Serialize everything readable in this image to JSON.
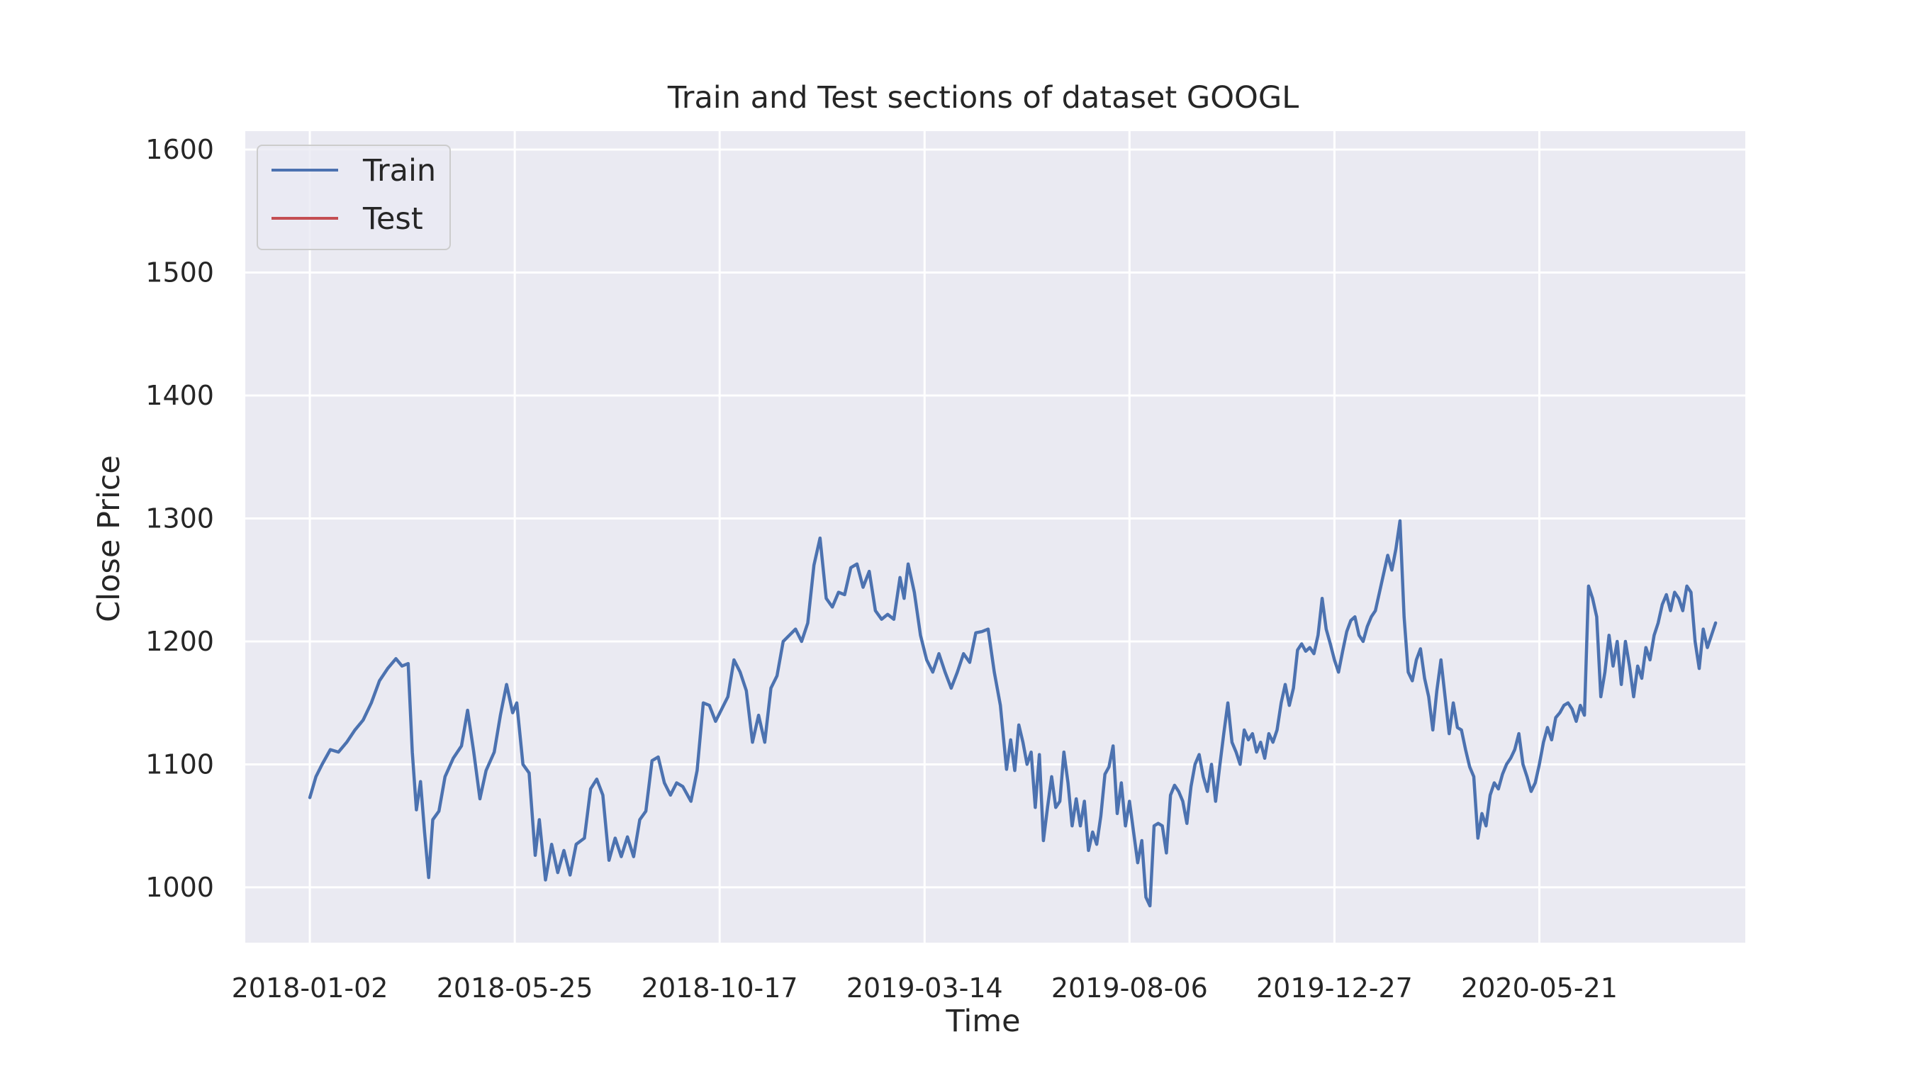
{
  "chart_data": {
    "type": "line",
    "title": "Train and Test sections of dataset GOOGL",
    "xlabel": "Time",
    "ylabel": "Close Price",
    "x_tick_labels": [
      "2018-01-02",
      "2018-05-25",
      "2018-10-17",
      "2019-03-14",
      "2019-08-06",
      "2019-12-27",
      "2020-05-21"
    ],
    "y_ticks": [
      1000,
      1100,
      1200,
      1300,
      1400,
      1500,
      1600
    ],
    "y_tick_labels": [
      "1000",
      "1100",
      "1200",
      "1300",
      "1400",
      "1500",
      "1600"
    ],
    "ylim": [
      955,
      1615
    ],
    "xlim_index": [
      -31.5,
      700.5
    ],
    "grid": true,
    "legend_position": "top-left",
    "series": [
      {
        "name": "Train",
        "color": "#4c72b0",
        "points": [
          [
            0,
            1073
          ],
          [
            3,
            1090
          ],
          [
            6,
            1100
          ],
          [
            10,
            1112
          ],
          [
            14,
            1110
          ],
          [
            18,
            1118
          ],
          [
            22,
            1128
          ],
          [
            26,
            1136
          ],
          [
            30,
            1150
          ],
          [
            34,
            1168
          ],
          [
            38,
            1178
          ],
          [
            42,
            1186
          ],
          [
            45,
            1180
          ],
          [
            48,
            1182
          ],
          [
            50,
            1110
          ],
          [
            52,
            1063
          ],
          [
            54,
            1086
          ],
          [
            56,
            1045
          ],
          [
            58,
            1008
          ],
          [
            60,
            1055
          ],
          [
            63,
            1062
          ],
          [
            66,
            1090
          ],
          [
            70,
            1105
          ],
          [
            74,
            1115
          ],
          [
            77,
            1144
          ],
          [
            80,
            1110
          ],
          [
            83,
            1072
          ],
          [
            86,
            1095
          ],
          [
            90,
            1110
          ],
          [
            93,
            1140
          ],
          [
            96,
            1165
          ],
          [
            99,
            1142
          ],
          [
            101,
            1150
          ],
          [
            104,
            1100
          ],
          [
            107,
            1093
          ],
          [
            110,
            1026
          ],
          [
            112,
            1055
          ],
          [
            115,
            1006
          ],
          [
            118,
            1035
          ],
          [
            121,
            1012
          ],
          [
            124,
            1030
          ],
          [
            127,
            1010
          ],
          [
            130,
            1035
          ],
          [
            134,
            1040
          ],
          [
            137,
            1080
          ],
          [
            140,
            1088
          ],
          [
            143,
            1075
          ],
          [
            146,
            1022
          ],
          [
            149,
            1040
          ],
          [
            152,
            1025
          ],
          [
            155,
            1041
          ],
          [
            158,
            1025
          ],
          [
            161,
            1055
          ],
          [
            164,
            1062
          ],
          [
            167,
            1103
          ],
          [
            170,
            1106
          ],
          [
            173,
            1085
          ],
          [
            176,
            1075
          ],
          [
            179,
            1085
          ],
          [
            182,
            1082
          ],
          [
            186,
            1070
          ],
          [
            189,
            1095
          ],
          [
            192,
            1150
          ],
          [
            195,
            1148
          ],
          [
            198,
            1135
          ],
          [
            201,
            1145
          ],
          [
            204,
            1155
          ],
          [
            207,
            1185
          ],
          [
            210,
            1175
          ],
          [
            213,
            1160
          ],
          [
            216,
            1118
          ],
          [
            219,
            1140
          ],
          [
            222,
            1118
          ],
          [
            225,
            1162
          ],
          [
            228,
            1172
          ],
          [
            231,
            1200
          ],
          [
            234,
            1205
          ],
          [
            237,
            1210
          ],
          [
            240,
            1200
          ],
          [
            243,
            1215
          ],
          [
            246,
            1262
          ],
          [
            249,
            1284
          ],
          [
            252,
            1235
          ],
          [
            255,
            1228
          ],
          [
            258,
            1240
          ],
          [
            261,
            1238
          ],
          [
            264,
            1260
          ],
          [
            267,
            1263
          ],
          [
            270,
            1244
          ],
          [
            273,
            1257
          ],
          [
            276,
            1225
          ],
          [
            279,
            1218
          ],
          [
            282,
            1222
          ],
          [
            285,
            1218
          ],
          [
            288,
            1252
          ],
          [
            290,
            1235
          ],
          [
            292,
            1263
          ],
          [
            295,
            1240
          ],
          [
            298,
            1205
          ],
          [
            301,
            1185
          ],
          [
            304,
            1175
          ],
          [
            307,
            1190
          ],
          [
            310,
            1175
          ],
          [
            313,
            1162
          ],
          [
            316,
            1175
          ],
          [
            319,
            1190
          ],
          [
            322,
            1183
          ],
          [
            325,
            1207
          ],
          [
            328,
            1208
          ],
          [
            331,
            1210
          ],
          [
            334,
            1175
          ],
          [
            337,
            1148
          ],
          [
            340,
            1096
          ],
          [
            342,
            1120
          ],
          [
            344,
            1095
          ],
          [
            346,
            1132
          ],
          [
            348,
            1118
          ],
          [
            350,
            1100
          ],
          [
            352,
            1110
          ],
          [
            354,
            1065
          ],
          [
            356,
            1108
          ],
          [
            358,
            1038
          ],
          [
            360,
            1065
          ],
          [
            362,
            1090
          ],
          [
            364,
            1065
          ],
          [
            366,
            1070
          ],
          [
            368,
            1110
          ],
          [
            370,
            1085
          ],
          [
            372,
            1050
          ],
          [
            374,
            1072
          ],
          [
            376,
            1050
          ],
          [
            378,
            1070
          ],
          [
            380,
            1030
          ],
          [
            382,
            1045
          ],
          [
            384,
            1035
          ],
          [
            386,
            1058
          ],
          [
            388,
            1092
          ],
          [
            390,
            1098
          ],
          [
            392,
            1115
          ],
          [
            394,
            1060
          ],
          [
            396,
            1085
          ],
          [
            398,
            1050
          ],
          [
            400,
            1070
          ],
          [
            402,
            1045
          ],
          [
            404,
            1020
          ],
          [
            406,
            1038
          ],
          [
            408,
            992
          ],
          [
            410,
            985
          ],
          [
            412,
            1050
          ],
          [
            414,
            1052
          ],
          [
            416,
            1050
          ],
          [
            418,
            1028
          ],
          [
            420,
            1075
          ],
          [
            422,
            1083
          ],
          [
            424,
            1078
          ],
          [
            426,
            1070
          ],
          [
            428,
            1052
          ],
          [
            430,
            1082
          ],
          [
            432,
            1100
          ],
          [
            434,
            1108
          ],
          [
            436,
            1090
          ],
          [
            438,
            1078
          ],
          [
            440,
            1100
          ],
          [
            442,
            1070
          ],
          [
            444,
            1098
          ],
          [
            446,
            1125
          ],
          [
            448,
            1150
          ],
          [
            450,
            1118
          ],
          [
            452,
            1110
          ],
          [
            454,
            1100
          ],
          [
            456,
            1128
          ],
          [
            458,
            1120
          ],
          [
            460,
            1125
          ],
          [
            462,
            1110
          ],
          [
            464,
            1118
          ],
          [
            466,
            1105
          ],
          [
            468,
            1125
          ],
          [
            470,
            1118
          ],
          [
            472,
            1128
          ],
          [
            474,
            1150
          ],
          [
            476,
            1165
          ],
          [
            478,
            1148
          ],
          [
            480,
            1162
          ],
          [
            482,
            1193
          ],
          [
            484,
            1198
          ],
          [
            486,
            1192
          ],
          [
            488,
            1195
          ],
          [
            490,
            1190
          ],
          [
            492,
            1205
          ],
          [
            494,
            1235
          ],
          [
            496,
            1210
          ],
          [
            498,
            1198
          ],
          [
            500,
            1185
          ],
          [
            502,
            1175
          ],
          [
            504,
            1192
          ],
          [
            506,
            1208
          ],
          [
            508,
            1217
          ],
          [
            510,
            1220
          ],
          [
            512,
            1205
          ],
          [
            514,
            1200
          ],
          [
            516,
            1212
          ],
          [
            518,
            1220
          ],
          [
            520,
            1225
          ],
          [
            522,
            1240
          ],
          [
            524,
            1255
          ],
          [
            526,
            1270
          ],
          [
            528,
            1258
          ],
          [
            530,
            1275
          ],
          [
            532,
            1298
          ],
          [
            534,
            1220
          ],
          [
            536,
            1175
          ],
          [
            538,
            1168
          ],
          [
            540,
            1185
          ],
          [
            542,
            1194
          ],
          [
            544,
            1170
          ],
          [
            546,
            1155
          ],
          [
            548,
            1128
          ],
          [
            550,
            1160
          ],
          [
            552,
            1185
          ],
          [
            554,
            1155
          ],
          [
            556,
            1125
          ],
          [
            558,
            1150
          ],
          [
            560,
            1130
          ],
          [
            562,
            1128
          ],
          [
            564,
            1112
          ],
          [
            566,
            1098
          ],
          [
            568,
            1090
          ],
          [
            570,
            1040
          ],
          [
            572,
            1060
          ],
          [
            574,
            1050
          ],
          [
            576,
            1075
          ],
          [
            578,
            1085
          ],
          [
            580,
            1080
          ],
          [
            582,
            1092
          ],
          [
            584,
            1100
          ],
          [
            586,
            1105
          ],
          [
            588,
            1112
          ],
          [
            590,
            1125
          ],
          [
            592,
            1100
          ],
          [
            594,
            1090
          ],
          [
            596,
            1078
          ],
          [
            598,
            1085
          ],
          [
            600,
            1100
          ],
          [
            602,
            1118
          ],
          [
            604,
            1130
          ],
          [
            606,
            1120
          ],
          [
            608,
            1138
          ],
          [
            610,
            1142
          ],
          [
            612,
            1148
          ],
          [
            614,
            1150
          ],
          [
            616,
            1145
          ],
          [
            618,
            1135
          ],
          [
            620,
            1148
          ],
          [
            622,
            1140
          ],
          [
            624,
            1245
          ],
          [
            626,
            1235
          ],
          [
            628,
            1220
          ],
          [
            630,
            1155
          ],
          [
            632,
            1175
          ],
          [
            634,
            1205
          ],
          [
            636,
            1180
          ],
          [
            638,
            1200
          ],
          [
            640,
            1165
          ],
          [
            642,
            1200
          ],
          [
            644,
            1180
          ],
          [
            646,
            1155
          ],
          [
            648,
            1180
          ],
          [
            650,
            1170
          ],
          [
            652,
            1195
          ],
          [
            654,
            1185
          ],
          [
            656,
            1205
          ],
          [
            658,
            1215
          ],
          [
            660,
            1230
          ],
          [
            662,
            1238
          ],
          [
            664,
            1225
          ],
          [
            666,
            1240
          ],
          [
            668,
            1235
          ],
          [
            670,
            1225
          ],
          [
            672,
            1245
          ],
          [
            674,
            1240
          ],
          [
            676,
            1200
          ],
          [
            678,
            1178
          ],
          [
            680,
            1210
          ],
          [
            682,
            1195
          ],
          [
            684,
            1205
          ],
          [
            686,
            1215
          ]
        ]
      },
      {
        "name": "Test",
        "color": "#c44e52",
        "points": []
      }
    ]
  }
}
